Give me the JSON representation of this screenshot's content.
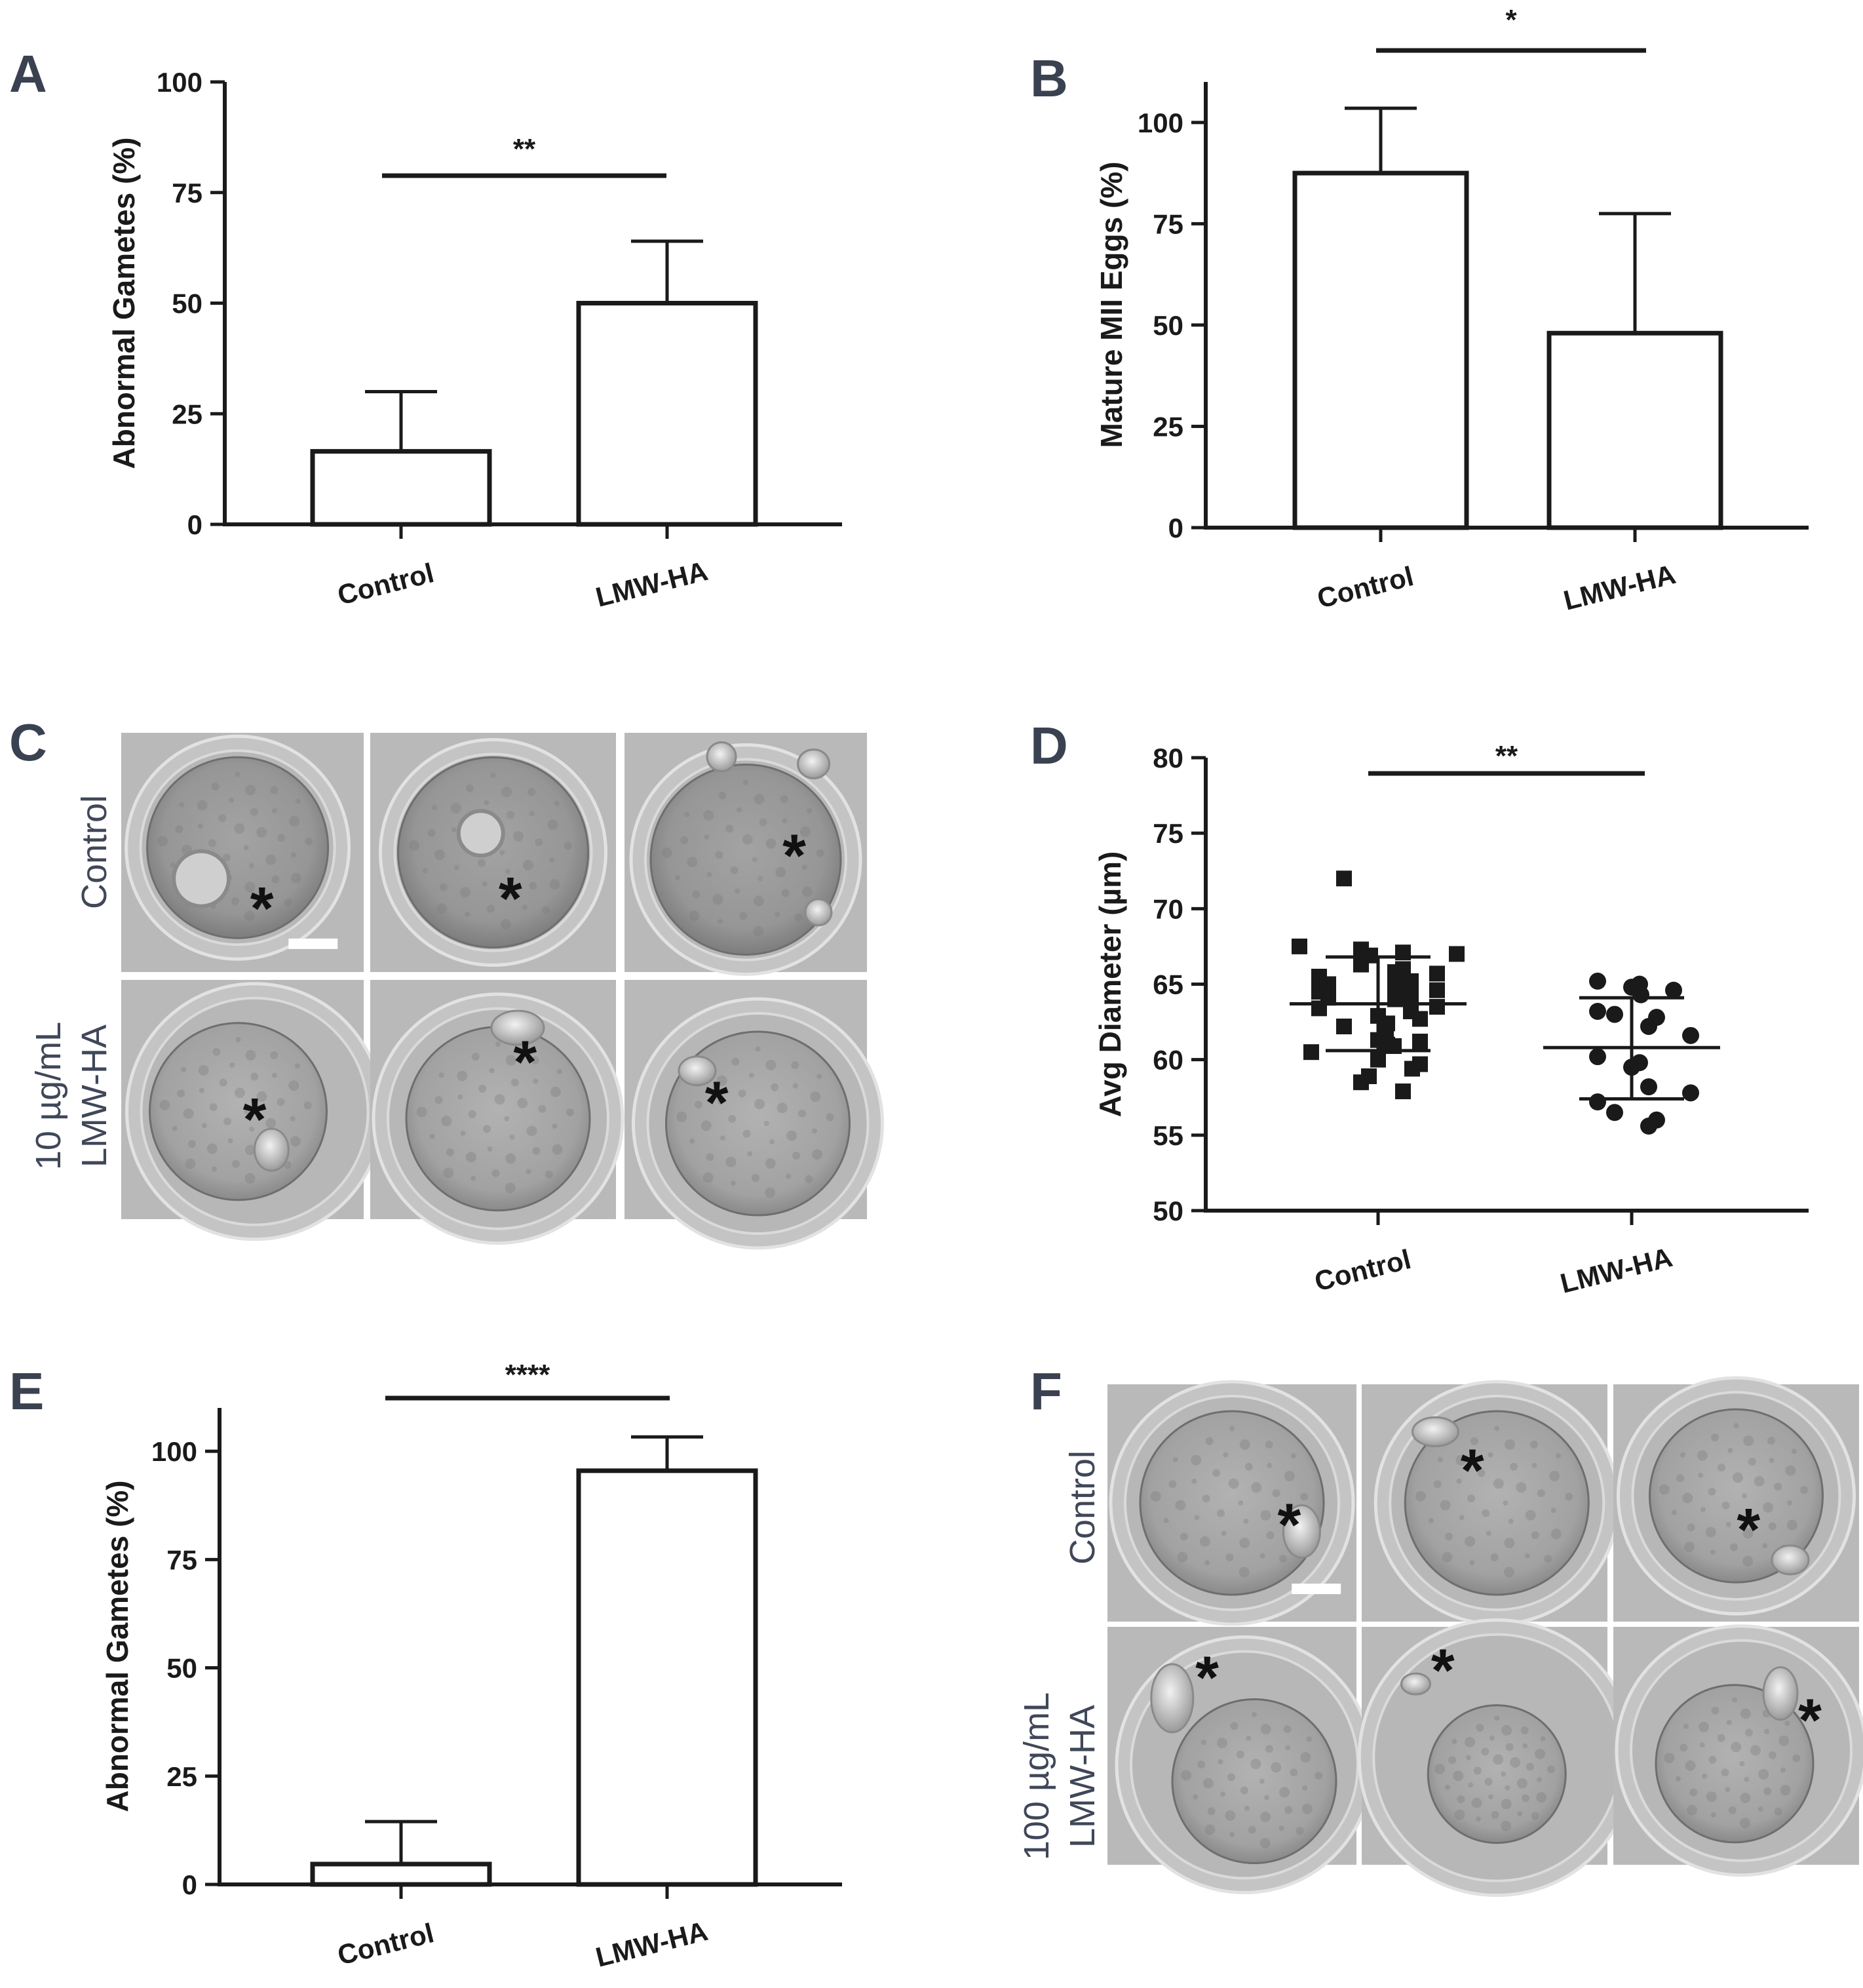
{
  "colors": {
    "axis": "#1a1a1a",
    "panel_letter": "#3a4150",
    "micro_bg": "#b9b9b9",
    "micro_label": "#3f4758",
    "bar_fill": "#ffffff"
  },
  "panel_letters": [
    "A",
    "B",
    "C",
    "D",
    "E",
    "F"
  ],
  "panels": {
    "C": {
      "row_labels": [
        [
          "Control"
        ],
        [
          "10 µg/mL",
          "LMW-HA"
        ]
      ],
      "marker": "*"
    },
    "F": {
      "row_labels": [
        [
          "Control"
        ],
        [
          "100 µg/mL",
          "LMW-HA"
        ]
      ],
      "marker": "*"
    }
  },
  "chart_data": [
    {
      "panel": "A",
      "type": "bar",
      "categories": [
        "Control",
        "LMW-HA"
      ],
      "values": [
        16.5,
        50.0
      ],
      "errors": [
        13.5,
        14.0
      ],
      "ylabel": "Abnormal Gametes (%)",
      "xlabel": "",
      "ylim": [
        0,
        100
      ],
      "yticks": [
        0,
        25,
        50,
        75,
        100
      ],
      "significance": "**"
    },
    {
      "panel": "B",
      "type": "bar",
      "categories": [
        "Control",
        "LMW-HA"
      ],
      "values": [
        87.5,
        48.0
      ],
      "errors": [
        16.0,
        29.5
      ],
      "ylabel": "Mature MII Eggs (%)",
      "xlabel": "",
      "ylim": [
        0,
        110
      ],
      "yticks": [
        0,
        25,
        50,
        75,
        100
      ],
      "significance": "*"
    },
    {
      "panel": "D",
      "type": "scatter",
      "categories": [
        "Control",
        "LMW-HA"
      ],
      "ylabel": "Avg Diameter (µm)",
      "xlabel": "",
      "ylim": [
        50,
        80
      ],
      "yticks": [
        50,
        55,
        60,
        65,
        70,
        75,
        80
      ],
      "significance": "**",
      "series": [
        {
          "marker": "square",
          "mean": 63.7,
          "sd_low": 60.6,
          "sd_high": 66.8,
          "values": [
            72.0,
            67.3,
            67.1,
            66.9,
            67.0,
            67.5,
            66.3,
            66.0,
            65.8,
            65.7,
            65.5,
            65.2,
            65.0,
            64.8,
            64.6,
            64.5,
            64.2,
            64.1,
            64.0,
            63.5,
            63.4,
            63.2,
            62.9,
            62.7,
            62.4,
            62.2,
            61.6,
            61.3,
            61.2,
            61.0,
            60.9,
            60.5,
            60.0,
            59.7,
            59.4,
            58.9,
            58.5,
            57.9
          ]
        },
        {
          "marker": "circle",
          "mean": 60.8,
          "sd_low": 57.4,
          "sd_high": 64.1,
          "values": [
            65.2,
            65.0,
            64.8,
            64.6,
            64.3,
            63.2,
            63.0,
            62.8,
            62.2,
            61.6,
            60.2,
            59.8,
            59.5,
            58.2,
            57.8,
            57.2,
            56.5,
            56.0,
            55.6
          ]
        }
      ]
    },
    {
      "panel": "E",
      "type": "bar",
      "categories": [
        "Control",
        "LMW-HA"
      ],
      "values": [
        4.7,
        95.5
      ],
      "errors": [
        9.8,
        7.8
      ],
      "ylabel": "Abnormal Gametes (%)",
      "xlabel": "",
      "ylim": [
        0,
        110
      ],
      "yticks": [
        0,
        25,
        50,
        75,
        100
      ],
      "significance": "****"
    }
  ]
}
